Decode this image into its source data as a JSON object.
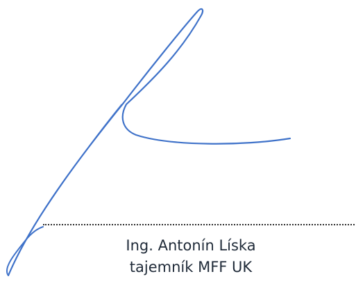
{
  "signature": {
    "ink_color": "#3f72c9",
    "icon": "handwritten-signature"
  },
  "signer": {
    "name": "Ing. Antonín Líska",
    "title": "tajemník MFF UK"
  }
}
